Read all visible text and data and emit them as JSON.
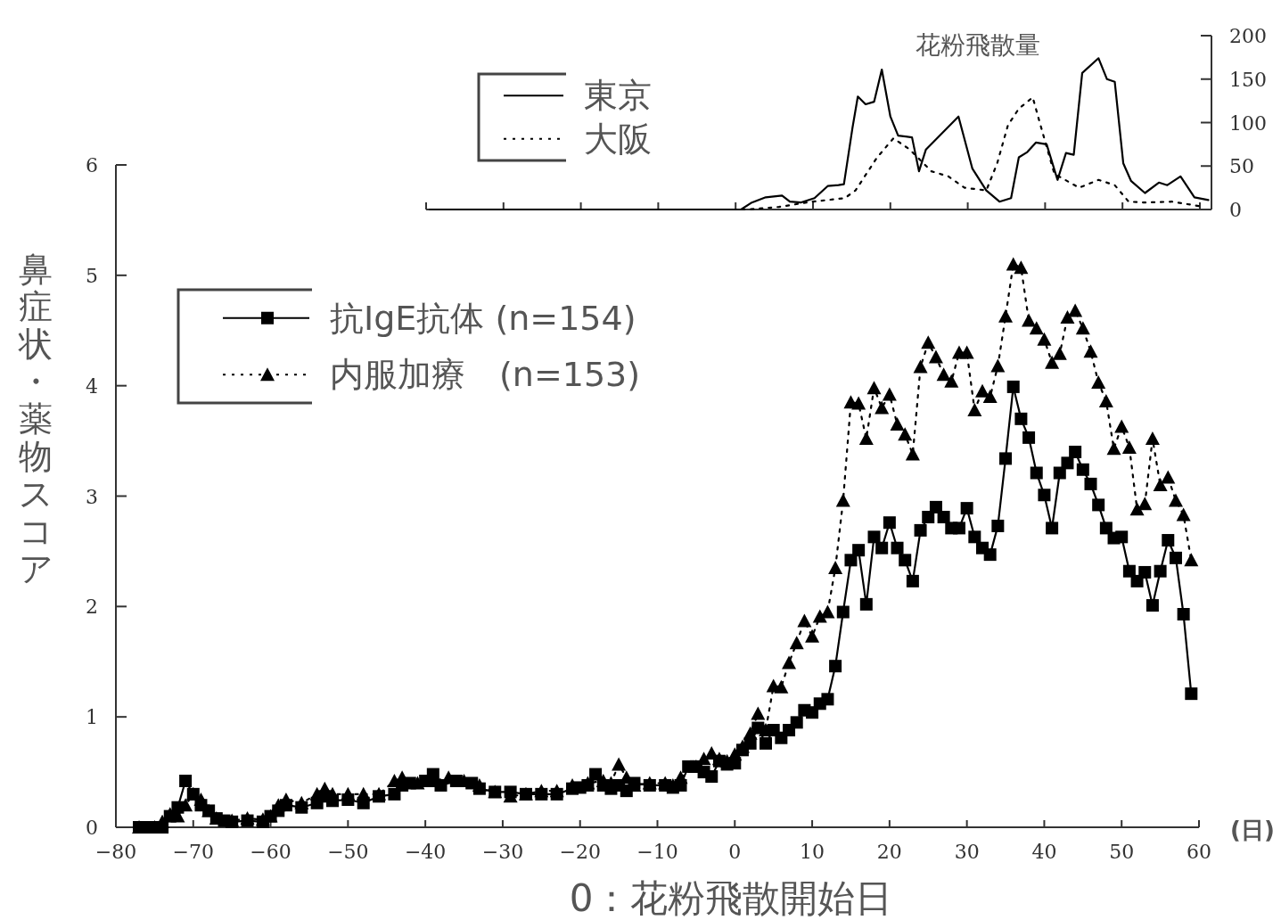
{
  "chart_data": [
    {
      "type": "line",
      "title": "花粉飛散量",
      "xlim": [
        -40,
        61.5
      ],
      "xticks": [
        -40,
        -30,
        -20,
        -10,
        0,
        10,
        20,
        30,
        40,
        50,
        60
      ],
      "ylim": [
        0,
        200
      ],
      "yticks": [
        0,
        50,
        100,
        150,
        200
      ],
      "tick_labels": "y",
      "grid": false,
      "legend": "top left",
      "marker": "none",
      "series": [
        {
          "name": "東京",
          "color": "#000000",
          "line_style": "solid",
          "x": [
            -39.5,
            0.7,
            2.1,
            3.9,
            6.0,
            7.0,
            8.4,
            10.2,
            11.9,
            13.3,
            14.0,
            15.1,
            15.8,
            16.8,
            17.9,
            18.9,
            20.0,
            21.0,
            22.8,
            23.7,
            24.6,
            28.8,
            30.6,
            32.4,
            34.1,
            35.6,
            36.6,
            37.7,
            38.8,
            40.2,
            41.6,
            42.7,
            43.7,
            44.8,
            46.9,
            48.0,
            49.0,
            50.1,
            51.1,
            52.9,
            54.7,
            55.8,
            57.5,
            59.3,
            61.1
          ],
          "values": [
            0,
            0,
            8,
            14,
            16,
            9,
            8,
            13,
            27,
            28,
            29,
            94,
            130,
            121,
            124,
            161,
            107,
            85,
            83,
            44,
            69,
            107,
            47,
            22,
            9,
            13,
            60,
            66,
            77,
            75,
            34,
            65,
            63,
            157,
            174,
            150,
            147,
            53,
            33,
            19,
            31,
            28,
            38,
            14,
            11
          ]
        },
        {
          "name": "大阪",
          "color": "#000000",
          "line_style": "dotted",
          "x": [
            -39.5,
            1.4,
            5.6,
            9.9,
            14.1,
            15.5,
            18.3,
            20.4,
            22.5,
            25.3,
            27.5,
            29.6,
            32.4,
            33.8,
            35.2,
            36.6,
            38.4,
            39.4,
            41.2,
            44.4,
            46.9,
            49.0,
            50.8,
            52.9,
            56.4,
            60.6
          ],
          "values": [
            0,
            0,
            3,
            9,
            13,
            22,
            60,
            82,
            69,
            44,
            38,
            25,
            22,
            53,
            97,
            116,
            129,
            97,
            41,
            25,
            34,
            28,
            9,
            8,
            9,
            3
          ]
        }
      ]
    },
    {
      "type": "line",
      "xlabel": "(日)",
      "ylabel": "鼻症状・薬物スコア",
      "annotations": [
        "0：花粉飛散開始日"
      ],
      "xlim": [
        -80,
        60
      ],
      "xticks": [
        {
          "value": -80,
          "label": "−80"
        },
        {
          "value": -70,
          "label": "−70"
        },
        {
          "value": -60,
          "label": "−60"
        },
        {
          "value": -50,
          "label": "−50"
        },
        {
          "value": -40,
          "label": "−40"
        },
        {
          "value": -30,
          "label": "−30"
        },
        {
          "value": -20,
          "label": "−20"
        },
        {
          "value": -10,
          "label": "−10"
        },
        0,
        10,
        20,
        30,
        40,
        50,
        60
      ],
      "ylim": [
        0,
        6
      ],
      "yticks": [
        0,
        1,
        2,
        3,
        4,
        5,
        6
      ],
      "grid": false,
      "legend": "top left",
      "series": [
        {
          "name": "抗IgE抗体 (n=154)",
          "color": "#000000",
          "line_style": "solid",
          "marker": "square",
          "x": [
            -77,
            -76,
            -75,
            -74,
            -73,
            -72,
            -71,
            -70,
            -69,
            -68,
            -67,
            -66,
            -65,
            -63,
            -61,
            -60,
            -59,
            -58,
            -56,
            -54,
            -53,
            -52,
            -50,
            -48,
            -46,
            -44,
            -43,
            -42,
            -40,
            -39,
            -38,
            -36,
            -34,
            -33,
            -31,
            -29,
            -27,
            -25,
            -23,
            -21,
            -20,
            -19,
            -18,
            -17,
            -16,
            -15,
            -14,
            -13,
            -11,
            -9,
            -8,
            -7,
            -6,
            -5,
            -4,
            -3,
            -2,
            -1,
            0,
            1,
            2,
            3,
            4,
            5,
            6,
            7,
            8,
            9,
            10,
            11,
            12,
            13,
            14,
            15,
            16,
            17,
            18,
            19,
            20,
            21,
            22,
            23,
            24,
            25,
            26,
            27,
            28,
            29,
            30,
            31,
            32,
            33,
            34,
            35,
            36,
            37,
            38,
            39,
            40,
            41,
            42,
            43,
            44,
            45,
            46,
            47,
            48,
            49,
            50,
            51,
            52,
            53,
            54,
            55,
            56,
            57,
            58,
            59
          ],
          "values": [
            0,
            0,
            0,
            0,
            0.1,
            0.18,
            0.42,
            0.3,
            0.2,
            0.15,
            0.08,
            0.06,
            0.05,
            0.06,
            0.05,
            0.1,
            0.15,
            0.2,
            0.18,
            0.22,
            0.28,
            0.24,
            0.25,
            0.22,
            0.28,
            0.3,
            0.38,
            0.4,
            0.42,
            0.48,
            0.38,
            0.42,
            0.4,
            0.35,
            0.32,
            0.32,
            0.3,
            0.3,
            0.3,
            0.35,
            0.36,
            0.38,
            0.48,
            0.38,
            0.35,
            0.38,
            0.33,
            0.4,
            0.38,
            0.38,
            0.36,
            0.38,
            0.55,
            0.55,
            0.5,
            0.46,
            0.6,
            0.57,
            0.58,
            0.7,
            0.76,
            0.9,
            0.76,
            0.88,
            0.81,
            0.88,
            0.95,
            1.06,
            1.04,
            1.12,
            1.16,
            1.46,
            1.95,
            2.42,
            2.51,
            2.02,
            2.63,
            2.53,
            2.76,
            2.53,
            2.42,
            2.23,
            2.69,
            2.81,
            2.9,
            2.81,
            2.71,
            2.71,
            2.89,
            2.63,
            2.53,
            2.47,
            2.73,
            3.34,
            3.99,
            3.7,
            3.53,
            3.21,
            3.01,
            2.71,
            3.21,
            3.3,
            3.4,
            3.24,
            3.11,
            2.92,
            2.71,
            2.62,
            2.63,
            2.32,
            2.23,
            2.31,
            2.01,
            2.32,
            2.6,
            2.44,
            1.93,
            1.21
          ]
        },
        {
          "name": "内服加療　(n=153)",
          "color": "#000000",
          "line_style": "dotted",
          "marker": "triangle",
          "x": [
            -77,
            -75,
            -74,
            -73,
            -72,
            -71,
            -70,
            -69,
            -68,
            -67,
            -65,
            -63,
            -61,
            -60,
            -59,
            -58,
            -56,
            -54,
            -53,
            -52,
            -50,
            -48,
            -46,
            -44,
            -43,
            -41,
            -39,
            -37,
            -35,
            -33,
            -31,
            -29,
            -27,
            -25,
            -23,
            -21,
            -19,
            -17,
            -16,
            -15,
            -14,
            -13,
            -11,
            -9,
            -8,
            -7,
            -5,
            -4,
            -3,
            -2,
            -1,
            0,
            1,
            2,
            3,
            4,
            5,
            6,
            7,
            8,
            9,
            10,
            11,
            12,
            13,
            14,
            15,
            16,
            17,
            18,
            19,
            20,
            21,
            22,
            23,
            24,
            25,
            26,
            27,
            28,
            29,
            30,
            31,
            32,
            33,
            34,
            35,
            36,
            37,
            38,
            39,
            40,
            41,
            42,
            43,
            44,
            45,
            46,
            47,
            48,
            49,
            50,
            51,
            52,
            53,
            54,
            55,
            56,
            57,
            58,
            59
          ],
          "values": [
            0,
            0,
            0.05,
            0.12,
            0.1,
            0.2,
            0.3,
            0.25,
            0.15,
            0.08,
            0.06,
            0.08,
            0.07,
            0.1,
            0.2,
            0.25,
            0.22,
            0.3,
            0.35,
            0.3,
            0.3,
            0.3,
            0.3,
            0.42,
            0.45,
            0.4,
            0.42,
            0.45,
            0.42,
            0.38,
            0.32,
            0.28,
            0.3,
            0.33,
            0.33,
            0.38,
            0.4,
            0.42,
            0.4,
            0.57,
            0.45,
            0.38,
            0.4,
            0.4,
            0.38,
            0.45,
            0.55,
            0.62,
            0.67,
            0.62,
            0.6,
            0.66,
            0.73,
            0.85,
            1.03,
            0.88,
            1.28,
            1.27,
            1.49,
            1.67,
            1.87,
            1.73,
            1.91,
            1.95,
            2.35,
            2.96,
            3.85,
            3.84,
            3.52,
            3.98,
            3.8,
            3.92,
            3.65,
            3.56,
            3.38,
            4.17,
            4.39,
            4.26,
            4.1,
            4.04,
            4.3,
            4.3,
            3.78,
            3.95,
            3.9,
            4.18,
            4.63,
            5.1,
            5.07,
            4.59,
            4.52,
            4.42,
            4.21,
            4.29,
            4.62,
            4.68,
            4.52,
            4.31,
            4.03,
            3.86,
            3.43,
            3.63,
            3.44,
            2.88,
            2.93,
            3.52,
            3.1,
            3.17,
            2.96,
            2.83,
            2.42
          ]
        }
      ]
    }
  ]
}
